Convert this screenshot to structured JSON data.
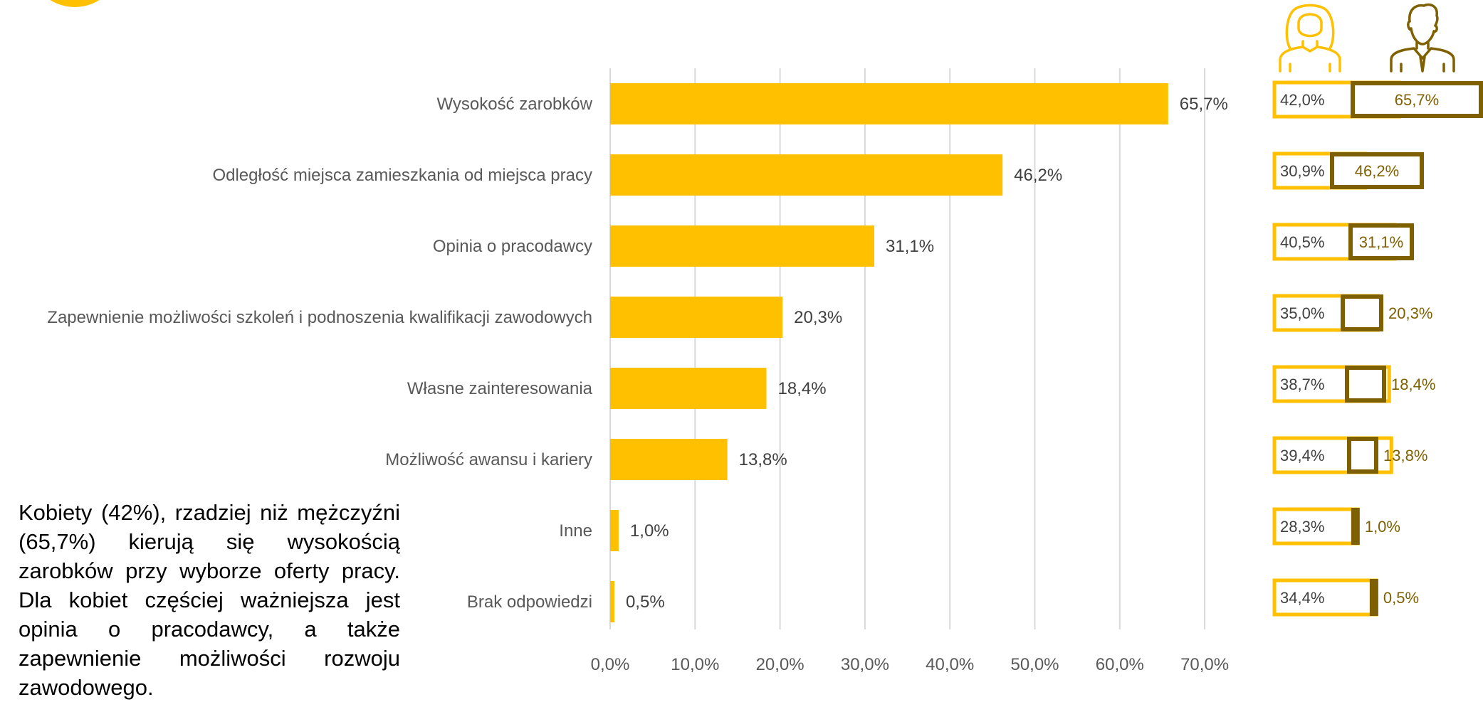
{
  "summary_text": "Kobiety (42%), rzadziej niż mężczyźni (65,7%) kierują się wysokością zarobków przy wyborze oferty pracy. Dla kobiet częściej ważniejsza jest opinia o pracodawcy, a także zapewnienie możliwości rozwoju zawodowego.",
  "icons": {
    "woman": "woman-icon",
    "man": "man-icon",
    "logo": "logo-circle"
  },
  "colors": {
    "bar": "#FFC000",
    "grid": "#D9D9D9",
    "women": "#FFC000",
    "men": "#7F6000",
    "text": "#595959"
  },
  "chart_data": [
    {
      "type": "bar",
      "orientation": "horizontal",
      "categories": [
        "Wysokość zarobków",
        "Odległość miejsca zamieszkania od miejsca pracy",
        "Opinia o pracodawcy",
        "Zapewnienie możliwości szkoleń i podnoszenia kwalifikacji zawodowych",
        "Własne zainteresowania",
        "Możliwość awansu i kariery",
        "Inne",
        "Brak odpowiedzi"
      ],
      "values": [
        65.7,
        46.2,
        31.1,
        20.3,
        18.4,
        13.8,
        1.0,
        0.5
      ],
      "value_labels": [
        "65,7%",
        "46,2%",
        "31,1%",
        "20,3%",
        "18,4%",
        "13,8%",
        "1,0%",
        "0,5%"
      ],
      "xlim": [
        0,
        70
      ],
      "x_ticks": [
        "0,0%",
        "10,0%",
        "20,0%",
        "30,0%",
        "40,0%",
        "50,0%",
        "60,0%",
        "70,0%"
      ],
      "grid": true
    },
    {
      "type": "bar",
      "orientation": "horizontal",
      "layout": "overlapping",
      "categories": [
        "Wysokość zarobków",
        "Odległość miejsca zamieszkania od miejsca pracy",
        "Opinia o pracodawcy",
        "Zapewnienie możliwości szkoleń i podnoszenia kwalifikacji zawodowych",
        "Własne zainteresowania",
        "Możliwość awansu i kariery",
        "Inne",
        "Brak odpowiedzi"
      ],
      "series": [
        {
          "icon": "woman-icon",
          "values": [
            42.0,
            30.9,
            40.5,
            35.0,
            38.7,
            39.4,
            28.3,
            34.4
          ],
          "labels": [
            "42,0%",
            "30,9%",
            "40,5%",
            "35,0%",
            "38,7%",
            "39,4%",
            "28,3%",
            "34,4%"
          ]
        },
        {
          "icon": "man-icon",
          "values": [
            65.7,
            46.2,
            31.1,
            20.3,
            18.4,
            13.8,
            1.0,
            0.5
          ],
          "labels": [
            "65,7%",
            "46,2%",
            "31,1%",
            "20,3%",
            "18,4%",
            "13,8%",
            "1,0%",
            "0,5%"
          ]
        }
      ]
    }
  ]
}
